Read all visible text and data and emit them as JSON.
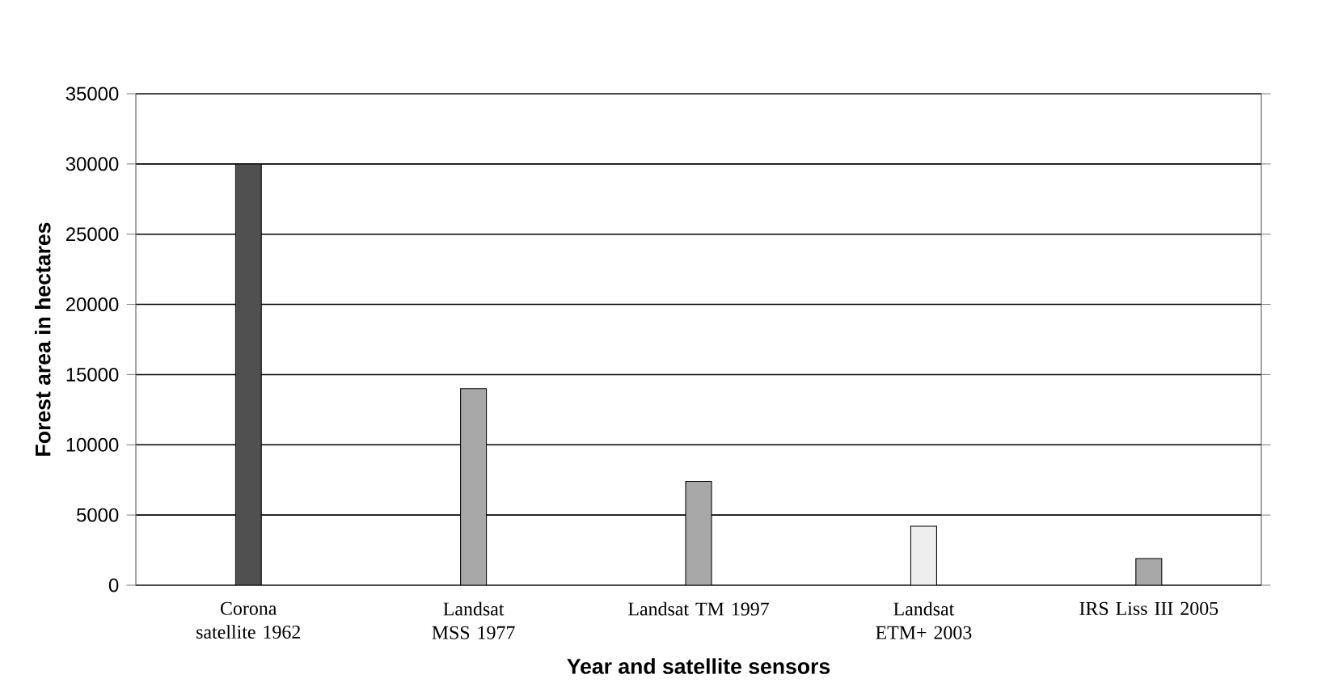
{
  "chart_data": {
    "type": "bar",
    "xlabel": "Year and satellite sensors",
    "ylabel": "Forest area in hectares",
    "categories": [
      "Corona satellite 1962",
      "Landsat MSS 1977",
      "Landsat TM 1997",
      "Landsat ETM+ 2003",
      "IRS Liss III 2005"
    ],
    "values": [
      30000,
      14000,
      7400,
      4200,
      1900
    ],
    "colors": [
      "#505050",
      "#a8a8a8",
      "#a8a8a8",
      "#eeeeee",
      "#a8a8a8"
    ],
    "ylim": [
      0,
      35000
    ],
    "yticks": [
      0,
      5000,
      10000,
      15000,
      20000,
      25000,
      30000,
      35000
    ],
    "grid": "y"
  }
}
